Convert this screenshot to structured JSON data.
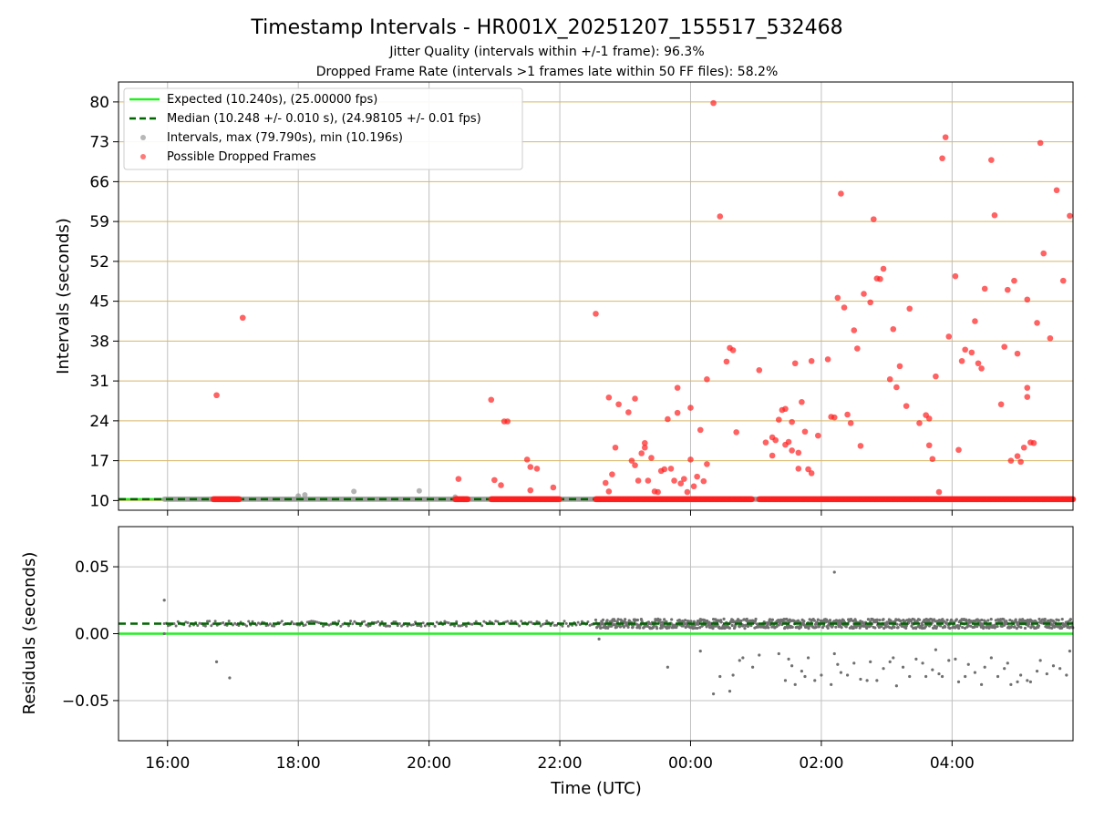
{
  "title": "Timestamp Intervals - HR001X_20251207_155517_532468",
  "subtitle_1": "Jitter Quality (intervals within +/-1 frame): 96.3%",
  "subtitle_2": "Dropped Frame Rate (intervals >1 frames late within 50 FF files): 58.2%",
  "colors": {
    "expected": "#22ee22",
    "median": "#006400",
    "intervals": "#999999",
    "dropped": "#ff2020",
    "residual_points": "#707070",
    "hgrid_top": "#d8b76a",
    "grid": "#c0c0c0"
  },
  "chart_data": [
    {
      "type": "scatter",
      "ylabel": "Intervals (seconds)",
      "xlabel": "",
      "x_unit": "hours since 00:00 UTC (negative = previous day)",
      "xlim": [
        -8.75,
        5.85
      ],
      "ylim": [
        8.3,
        83.5
      ],
      "yticks": [
        10,
        17,
        24,
        31,
        38,
        45,
        52,
        59,
        66,
        73,
        80
      ],
      "grid": "x and y",
      "legend": {
        "placement": "upper-left",
        "entries": [
          "Expected (10.240s), (25.00000 fps)",
          "Median (10.248 +/- 0.010 s), (24.98105 +/- 0.01 fps)",
          "Intervals, max (79.790s), min (10.196s)",
          "Possible Dropped Frames"
        ]
      },
      "expected_line": 10.24,
      "median_line": 10.248,
      "interval_series": {
        "start_x": -8.05,
        "baseline": 10.24,
        "extra_points": [
          [
            -6.0,
            10.8
          ],
          [
            -5.9,
            11.0
          ],
          [
            -5.15,
            11.6
          ],
          [
            -4.15,
            11.7
          ],
          [
            -3.6,
            10.6
          ]
        ]
      },
      "dropped_series": {
        "baseline": 10.24,
        "dense_ranges": [
          [
            -7.3,
            -6.9
          ],
          [
            -3.6,
            -3.4
          ],
          [
            -3.05,
            -2.0
          ],
          [
            -1.45,
            0.95
          ],
          [
            1.05,
            5.85
          ]
        ],
        "points": [
          [
            -7.25,
            28.5
          ],
          [
            -6.85,
            42.1
          ],
          [
            -3.55,
            13.8
          ],
          [
            -3.05,
            27.7
          ],
          [
            -3.0,
            13.6
          ],
          [
            -2.9,
            12.7
          ],
          [
            -2.85,
            23.9
          ],
          [
            -2.8,
            23.9
          ],
          [
            -2.5,
            17.2
          ],
          [
            -2.45,
            15.9
          ],
          [
            -2.35,
            15.6
          ],
          [
            -2.45,
            11.8
          ],
          [
            -2.1,
            12.3
          ],
          [
            -1.45,
            42.8
          ],
          [
            -1.3,
            13.1
          ],
          [
            -1.25,
            11.6
          ],
          [
            -1.25,
            28.1
          ],
          [
            -1.15,
            19.3
          ],
          [
            -1.2,
            14.6
          ],
          [
            -1.1,
            26.9
          ],
          [
            -0.95,
            25.5
          ],
          [
            -0.9,
            17.0
          ],
          [
            -0.85,
            16.2
          ],
          [
            -0.85,
            27.9
          ],
          [
            -0.8,
            13.5
          ],
          [
            -0.75,
            18.3
          ],
          [
            -0.7,
            19.3
          ],
          [
            -0.7,
            20.1
          ],
          [
            -0.65,
            13.5
          ],
          [
            -0.6,
            17.5
          ],
          [
            -0.55,
            11.6
          ],
          [
            -0.5,
            11.5
          ],
          [
            -0.45,
            15.2
          ],
          [
            -0.4,
            15.5
          ],
          [
            -0.35,
            24.3
          ],
          [
            -0.3,
            15.6
          ],
          [
            -0.25,
            13.5
          ],
          [
            -0.2,
            25.4
          ],
          [
            -0.2,
            29.8
          ],
          [
            -0.15,
            13.0
          ],
          [
            -0.1,
            13.8
          ],
          [
            -0.05,
            11.5
          ],
          [
            0.0,
            26.3
          ],
          [
            0.0,
            17.2
          ],
          [
            0.05,
            12.5
          ],
          [
            0.1,
            14.2
          ],
          [
            0.15,
            22.4
          ],
          [
            0.2,
            13.4
          ],
          [
            0.25,
            16.4
          ],
          [
            0.25,
            31.3
          ],
          [
            0.35,
            79.8
          ],
          [
            0.45,
            59.9
          ],
          [
            0.55,
            34.4
          ],
          [
            0.6,
            36.8
          ],
          [
            0.65,
            36.4
          ],
          [
            0.7,
            22.0
          ],
          [
            1.05,
            32.9
          ],
          [
            1.15,
            20.2
          ],
          [
            1.25,
            17.9
          ],
          [
            1.25,
            21.1
          ],
          [
            1.3,
            20.6
          ],
          [
            1.35,
            24.2
          ],
          [
            1.4,
            25.9
          ],
          [
            1.45,
            26.1
          ],
          [
            1.45,
            19.8
          ],
          [
            1.5,
            20.3
          ],
          [
            1.55,
            18.8
          ],
          [
            1.55,
            23.8
          ],
          [
            1.6,
            34.1
          ],
          [
            1.65,
            18.4
          ],
          [
            1.65,
            15.6
          ],
          [
            1.7,
            27.3
          ],
          [
            1.75,
            22.1
          ],
          [
            1.8,
            15.5
          ],
          [
            1.85,
            14.8
          ],
          [
            1.85,
            34.5
          ],
          [
            1.95,
            21.4
          ],
          [
            2.1,
            34.8
          ],
          [
            2.15,
            24.7
          ],
          [
            2.2,
            24.6
          ],
          [
            2.25,
            45.6
          ],
          [
            2.3,
            63.9
          ],
          [
            2.35,
            43.9
          ],
          [
            2.4,
            25.1
          ],
          [
            2.45,
            23.6
          ],
          [
            2.5,
            39.9
          ],
          [
            2.55,
            36.7
          ],
          [
            2.6,
            19.6
          ],
          [
            2.65,
            46.3
          ],
          [
            2.75,
            44.8
          ],
          [
            2.8,
            59.4
          ],
          [
            2.85,
            49.0
          ],
          [
            2.9,
            48.9
          ],
          [
            2.95,
            50.7
          ],
          [
            3.05,
            31.3
          ],
          [
            3.1,
            40.1
          ],
          [
            3.15,
            29.9
          ],
          [
            3.2,
            33.6
          ],
          [
            3.3,
            26.6
          ],
          [
            3.35,
            43.7
          ],
          [
            3.5,
            23.6
          ],
          [
            3.6,
            25.0
          ],
          [
            3.65,
            24.4
          ],
          [
            3.65,
            19.7
          ],
          [
            3.7,
            17.3
          ],
          [
            3.75,
            31.8
          ],
          [
            3.8,
            11.5
          ],
          [
            3.85,
            70.1
          ],
          [
            3.9,
            73.8
          ],
          [
            3.95,
            38.8
          ],
          [
            4.05,
            49.4
          ],
          [
            4.1,
            18.9
          ],
          [
            4.15,
            34.5
          ],
          [
            4.2,
            36.5
          ],
          [
            4.3,
            36.0
          ],
          [
            4.35,
            41.5
          ],
          [
            4.4,
            34.1
          ],
          [
            4.45,
            33.2
          ],
          [
            4.5,
            47.2
          ],
          [
            4.6,
            69.8
          ],
          [
            4.65,
            60.1
          ],
          [
            4.75,
            26.9
          ],
          [
            4.8,
            37.0
          ],
          [
            4.85,
            47.0
          ],
          [
            4.9,
            17.0
          ],
          [
            4.95,
            48.6
          ],
          [
            5.0,
            17.8
          ],
          [
            5.0,
            35.8
          ],
          [
            5.05,
            16.8
          ],
          [
            5.1,
            19.3
          ],
          [
            5.15,
            29.8
          ],
          [
            5.15,
            28.2
          ],
          [
            5.15,
            45.3
          ],
          [
            5.2,
            20.2
          ],
          [
            5.25,
            20.1
          ],
          [
            5.3,
            41.2
          ],
          [
            5.35,
            72.8
          ],
          [
            5.4,
            53.4
          ],
          [
            5.5,
            38.5
          ],
          [
            5.6,
            64.5
          ],
          [
            5.7,
            48.6
          ],
          [
            5.8,
            60.0
          ]
        ]
      }
    },
    {
      "type": "scatter",
      "ylabel": "Residuals (seconds)",
      "xlabel": "Time (UTC)",
      "xlim": [
        -8.75,
        5.85
      ],
      "ylim": [
        -0.08,
        0.08
      ],
      "yticks": [
        -0.05,
        0.0,
        0.05
      ],
      "ytick_labels": [
        "−0.05",
        "0.00",
        "0.05"
      ],
      "xticks": [
        -8,
        -6,
        -4,
        -2,
        0,
        2,
        4
      ],
      "xtick_labels": [
        "16:00",
        "18:00",
        "20:00",
        "22:00",
        "00:00",
        "02:00",
        "04:00"
      ],
      "grid": "x and y",
      "expected_line": 0.0,
      "median_line": 0.0075,
      "band": {
        "center": 0.0075,
        "sparse_range": [
          -8.05,
          -1.45
        ],
        "dense_range": [
          -1.45,
          5.85
        ]
      },
      "outliers": [
        [
          -8.05,
          0.025
        ],
        [
          -8.05,
          0.0
        ],
        [
          -7.25,
          -0.021
        ],
        [
          -7.05,
          -0.033
        ],
        [
          -1.4,
          -0.004
        ],
        [
          -0.35,
          -0.025
        ],
        [
          0.15,
          -0.013
        ],
        [
          0.35,
          -0.045
        ],
        [
          0.45,
          -0.032
        ],
        [
          0.6,
          -0.043
        ],
        [
          0.65,
          -0.031
        ],
        [
          0.8,
          -0.018
        ],
        [
          0.75,
          -0.02
        ],
        [
          0.95,
          -0.025
        ],
        [
          1.05,
          -0.016
        ],
        [
          1.35,
          -0.015
        ],
        [
          1.45,
          -0.035
        ],
        [
          1.5,
          -0.019
        ],
        [
          1.55,
          -0.024
        ],
        [
          1.6,
          -0.038
        ],
        [
          1.7,
          -0.028
        ],
        [
          1.75,
          -0.032
        ],
        [
          1.8,
          -0.018
        ],
        [
          1.9,
          -0.035
        ],
        [
          2.0,
          -0.031
        ],
        [
          2.15,
          -0.038
        ],
        [
          2.2,
          0.046
        ],
        [
          2.2,
          -0.015
        ],
        [
          2.25,
          -0.023
        ],
        [
          2.3,
          -0.029
        ],
        [
          2.4,
          -0.031
        ],
        [
          2.5,
          -0.022
        ],
        [
          2.6,
          -0.034
        ],
        [
          2.7,
          -0.035
        ],
        [
          2.75,
          -0.021
        ],
        [
          2.85,
          -0.035
        ],
        [
          2.95,
          -0.026
        ],
        [
          3.05,
          -0.021
        ],
        [
          3.1,
          -0.018
        ],
        [
          3.15,
          -0.039
        ],
        [
          3.25,
          -0.025
        ],
        [
          3.35,
          -0.032
        ],
        [
          3.45,
          -0.019
        ],
        [
          3.55,
          -0.022
        ],
        [
          3.6,
          -0.032
        ],
        [
          3.7,
          -0.027
        ],
        [
          3.75,
          -0.012
        ],
        [
          3.8,
          -0.03
        ],
        [
          3.85,
          -0.032
        ],
        [
          3.95,
          -0.02
        ],
        [
          4.05,
          -0.019
        ],
        [
          4.1,
          -0.036
        ],
        [
          4.2,
          -0.032
        ],
        [
          4.25,
          -0.023
        ],
        [
          4.35,
          -0.029
        ],
        [
          4.45,
          -0.038
        ],
        [
          4.5,
          -0.025
        ],
        [
          4.6,
          -0.018
        ],
        [
          4.7,
          -0.032
        ],
        [
          4.8,
          -0.026
        ],
        [
          4.85,
          -0.022
        ],
        [
          4.9,
          -0.038
        ],
        [
          5.0,
          -0.036
        ],
        [
          5.05,
          -0.031
        ],
        [
          5.15,
          -0.035
        ],
        [
          5.2,
          -0.036
        ],
        [
          5.3,
          -0.028
        ],
        [
          5.35,
          -0.02
        ],
        [
          5.45,
          -0.03
        ],
        [
          5.55,
          -0.024
        ],
        [
          5.65,
          -0.026
        ],
        [
          5.75,
          -0.031
        ],
        [
          5.8,
          -0.013
        ]
      ]
    }
  ]
}
